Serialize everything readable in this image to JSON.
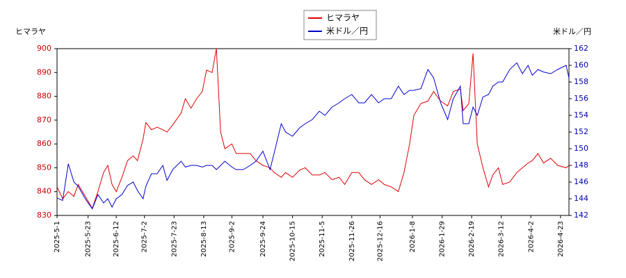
{
  "chart_data": {
    "type": "line",
    "y_label": "ヒマラヤ",
    "y2_label": "米ドル／円",
    "x": [
      "2025-5-1",
      "2025-5-5",
      "2025-5-9",
      "2025-5-13",
      "2025-5-16",
      "2025-5-21",
      "2025-5-26",
      "2025-5-30",
      "2025-6-3",
      "2025-6-6",
      "2025-6-9",
      "2025-6-12",
      "2025-6-16",
      "2025-6-20",
      "2025-6-24",
      "2025-6-27",
      "2025-7-1",
      "2025-7-3",
      "2025-7-7",
      "2025-7-11",
      "2025-7-15",
      "2025-7-18",
      "2025-7-22",
      "2025-7-28",
      "2025-7-31",
      "2025-8-4",
      "2025-8-8",
      "2025-8-12",
      "2025-8-15",
      "2025-8-19",
      "2025-8-22",
      "2025-8-25",
      "2025-8-28",
      "2025-9-2",
      "2025-9-5",
      "2025-9-10",
      "2025-9-15",
      "2025-9-19",
      "2025-9-24",
      "2025-9-29",
      "2025-10-2",
      "2025-10-7",
      "2025-10-10",
      "2025-10-15",
      "2025-10-20",
      "2025-10-24",
      "2025-10-29",
      "2025-11-3",
      "2025-11-7",
      "2025-11-12",
      "2025-11-17",
      "2025-11-21",
      "2025-11-26",
      "2025-12-1",
      "2025-12-5",
      "2025-12-10",
      "2025-12-15",
      "2025-12-19",
      "2025-12-24",
      "2025-12-29",
      "2026-1-2",
      "2026-1-6",
      "2026-1-9",
      "2026-1-14",
      "2026-1-19",
      "2026-1-23",
      "2026-1-28",
      "2026-2-2",
      "2026-2-6",
      "2026-2-11",
      "2026-2-13",
      "2026-2-17",
      "2026-2-20",
      "2026-2-23",
      "2026-2-27",
      "2026-3-3",
      "2026-3-6",
      "2026-3-10",
      "2026-3-13",
      "2026-3-18",
      "2026-3-23",
      "2026-3-27",
      "2026-3-31",
      "2026-4-3",
      "2026-4-7",
      "2026-4-11",
      "2026-4-16",
      "2026-4-21",
      "2026-4-27",
      "2026-4-29"
    ],
    "series": [
      {
        "name": "ヒマラヤ",
        "color": "#dd0000",
        "axis": "y",
        "values": [
          842,
          837,
          840,
          838,
          843,
          838,
          833,
          840,
          848,
          851,
          843,
          840,
          846,
          853,
          855,
          853,
          862,
          869,
          866,
          867,
          866,
          865,
          868,
          873,
          879,
          875,
          879,
          882,
          891,
          890,
          900,
          865,
          858,
          860,
          856,
          856,
          856,
          853,
          851,
          850,
          848,
          846,
          848,
          846,
          849,
          850,
          847,
          847,
          848,
          845,
          846,
          843,
          848,
          848,
          845,
          843,
          845,
          843,
          842,
          840,
          848,
          860,
          872,
          877,
          878,
          882,
          878,
          876,
          882,
          883,
          874,
          877,
          898,
          860,
          850,
          842,
          847,
          850,
          843,
          844,
          848,
          850,
          852,
          853,
          856,
          852,
          854,
          851,
          850,
          851
        ]
      },
      {
        "name": "米ドル／円",
        "color": "#0000cc",
        "axis": "y2",
        "values": [
          144.1,
          143.8,
          148.2,
          146,
          145.5,
          144,
          142.8,
          144.5,
          143.5,
          144,
          143,
          144,
          144.5,
          145.6,
          146,
          145,
          144,
          145.5,
          147,
          147,
          148,
          146.2,
          147.5,
          148.5,
          147.8,
          148,
          148,
          147.8,
          148,
          148,
          147.5,
          148,
          148.5,
          147.8,
          147.5,
          147.5,
          148,
          148.5,
          149.7,
          147.5,
          149.5,
          153,
          152,
          151.5,
          152.5,
          153,
          153.5,
          154.5,
          154,
          155,
          155.5,
          156,
          156.5,
          155.5,
          155.5,
          156.5,
          155.5,
          156,
          156,
          157.5,
          156.5,
          157,
          157,
          157.2,
          159.5,
          158.5,
          155.5,
          153.5,
          156,
          157.5,
          153,
          153,
          155,
          154,
          156.2,
          156.5,
          157.5,
          158,
          158,
          159.5,
          160.3,
          159,
          160,
          158.8,
          159.5,
          159.2,
          159,
          159.5,
          160,
          158.5
        ]
      }
    ],
    "xlim": [
      "2025-5-1",
      "2026-4-29"
    ],
    "xticks": [
      "2025-5-1",
      "2025-5-23",
      "2025-6-12",
      "2025-7-2",
      "2025-7-23",
      "2025-8-13",
      "2025-9-2",
      "2025-9-24",
      "2025-10-15",
      "2025-11-5",
      "2025-11-26",
      "2025-12-16",
      "2026-1-8",
      "2026-1-29",
      "2026-2-19",
      "2026-3-12",
      "2026-4-2",
      "2026-4-23"
    ],
    "ylim": [
      830,
      900
    ],
    "yticks": [
      830,
      840,
      850,
      860,
      870,
      880,
      890,
      900
    ],
    "y2lim": [
      142,
      162
    ],
    "y2ticks": [
      142,
      144,
      146,
      148,
      150,
      152,
      154,
      156,
      158,
      160,
      162
    ],
    "legend": "top"
  }
}
